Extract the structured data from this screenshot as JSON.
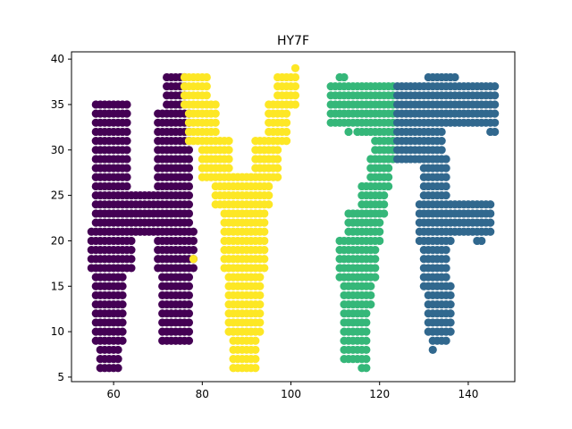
{
  "chart_data": {
    "type": "scatter",
    "title": "HY7F",
    "xlabel": "",
    "ylabel": "",
    "xlim": [
      50.5,
      150.5
    ],
    "ylim": [
      4.5,
      40.8
    ],
    "xticks": [
      60,
      80,
      100,
      120,
      140
    ],
    "yticks": [
      5,
      10,
      15,
      20,
      25,
      30,
      35,
      40
    ],
    "grid": false,
    "legend": "none",
    "series": [
      {
        "color": "#440154",
        "strokes": [
          {
            "x1": 57,
            "x2": 61,
            "y1": 6,
            "y2": 9
          },
          {
            "x1": 56,
            "x2": 62,
            "y1": 9,
            "y2": 17
          },
          {
            "x1": 55,
            "x2": 64,
            "y1": 17,
            "y2": 21
          },
          {
            "x1": 56,
            "x2": 63,
            "y1": 21,
            "y2": 35
          },
          {
            "x1": 63,
            "x2": 73,
            "y1": 21,
            "y2": 25
          },
          {
            "x1": 71,
            "x2": 77,
            "y1": 9,
            "y2": 17
          },
          {
            "x1": 70,
            "x2": 78,
            "y1": 17,
            "y2": 21
          },
          {
            "x1": 70,
            "x2": 77,
            "y1": 21,
            "y2": 34
          },
          {
            "x1": 72,
            "x2": 76,
            "y1": 34,
            "y2": 38
          }
        ]
      },
      {
        "color": "#fde725",
        "strokes": [
          {
            "x1": 87,
            "x2": 92,
            "y1": 6,
            "y2": 10
          },
          {
            "x1": 86,
            "x2": 93,
            "y1": 10,
            "y2": 17
          },
          {
            "x1": 85,
            "x2": 94,
            "y1": 17,
            "y2": 24
          },
          {
            "x1": 83,
            "x2": 95,
            "y1": 24,
            "y2": 27
          },
          {
            "x1": 80,
            "x2": 86,
            "y1": 27,
            "y2": 31
          },
          {
            "x1": 77,
            "x2": 83,
            "y1": 31,
            "y2": 35
          },
          {
            "x1": 76,
            "x2": 81,
            "y1": 35,
            "y2": 38
          },
          {
            "x1": 92,
            "x2": 97,
            "y1": 27,
            "y2": 31
          },
          {
            "x1": 95,
            "x2": 99,
            "y1": 31,
            "y2": 35
          },
          {
            "x1": 97,
            "x2": 101,
            "y1": 35,
            "y2": 38
          },
          {
            "x": [
              101,
              78
            ],
            "y": [
              39,
              18
            ]
          }
        ]
      },
      {
        "color": "#35b779",
        "strokes": [
          {
            "x1": 116,
            "x2": 117,
            "y1": 6,
            "y2": 7
          },
          {
            "x1": 112,
            "x2": 117,
            "y1": 7,
            "y2": 13
          },
          {
            "x1": 112,
            "x2": 118,
            "y1": 13,
            "y2": 16
          },
          {
            "x1": 111,
            "x2": 119,
            "y1": 16,
            "y2": 20
          },
          {
            "x1": 113,
            "x2": 120,
            "y1": 20,
            "y2": 23
          },
          {
            "x1": 116,
            "x2": 121,
            "y1": 23,
            "y2": 26
          },
          {
            "x1": 118,
            "x2": 122,
            "y1": 26,
            "y2": 29
          },
          {
            "x1": 119,
            "x2": 123,
            "y1": 29,
            "y2": 32
          },
          {
            "x1": 115,
            "x2": 123,
            "y1": 32,
            "y2": 33
          },
          {
            "x1": 109,
            "x2": 123,
            "y1": 33,
            "y2": 37
          },
          {
            "x1": 111,
            "x2": 112,
            "y1": 37,
            "y2": 38
          },
          {
            "x": [
              113
            ],
            "y": [
              32
            ]
          }
        ]
      },
      {
        "color": "#31688e",
        "strokes": [
          {
            "x1": 132,
            "x2": 135,
            "y1": 9,
            "y2": 10
          },
          {
            "x1": 131,
            "x2": 136,
            "y1": 10,
            "y2": 15
          },
          {
            "x1": 130,
            "x2": 135,
            "y1": 15,
            "y2": 20
          },
          {
            "x1": 129,
            "x2": 136,
            "y1": 20,
            "y2": 24
          },
          {
            "x1": 136,
            "x2": 145,
            "y1": 21,
            "y2": 24
          },
          {
            "x1": 130,
            "x2": 135,
            "y1": 24,
            "y2": 29
          },
          {
            "x1": 124,
            "x2": 134,
            "y1": 29,
            "y2": 33
          },
          {
            "x1": 124,
            "x2": 139,
            "y1": 33,
            "y2": 37
          },
          {
            "x1": 139,
            "x2": 146,
            "y1": 33,
            "y2": 37
          },
          {
            "x1": 131,
            "x2": 137,
            "y1": 37,
            "y2": 38
          },
          {
            "x": [
              132,
              142,
              143,
              145,
              146,
              133
            ],
            "y": [
              8,
              20,
              20,
              32,
              32,
              24
            ]
          }
        ]
      }
    ]
  }
}
